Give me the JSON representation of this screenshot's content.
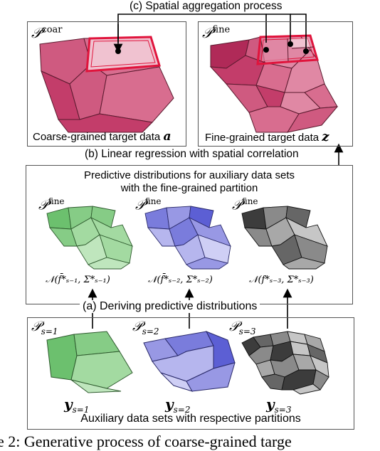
{
  "top": {
    "process_c": "(c) Spatial aggregation process",
    "coarse": {
      "symbol": "𝒫",
      "sup": "coar",
      "caption": "Coarse-grained target data",
      "var": "a"
    },
    "fine": {
      "symbol": "𝒫",
      "sup": "fine",
      "caption": "Fine-grained target data",
      "var": "z"
    }
  },
  "middle": {
    "process_b": "(b) Linear regression with spatial correlation",
    "title_line1": "Predictive distributions for auxiliary data sets",
    "title_line2": "with the fine-grained partition",
    "panels": [
      {
        "symbol": "𝒫",
        "sup": "fine",
        "formula": "𝒩(f̄*ₛ₋₁, Σ*ₛ₋₁)"
      },
      {
        "symbol": "𝒫",
        "sup": "fine",
        "formula": "𝒩(f̄*ₛ₋₂, Σ*ₛ₋₂)"
      },
      {
        "symbol": "𝒫",
        "sup": "fine",
        "formula": "𝒩(f*ₛ₋₃, Σ*ₛ₋₃)"
      }
    ]
  },
  "bottom": {
    "process_a": "(a) Deriving predictive distributions",
    "panels": [
      {
        "symbol": "𝒫",
        "sub": "s=1",
        "var": "y",
        "var_sub": "s=1"
      },
      {
        "symbol": "𝒫",
        "sub": "s=2",
        "var": "y",
        "var_sub": "s=2"
      },
      {
        "symbol": "𝒫",
        "sub": "s=3",
        "var": "y",
        "var_sub": "s=3"
      }
    ],
    "caption": "Auxiliary data sets with respective partitions"
  },
  "figure_caption": "e 2: Generative process of coarse-grained targe",
  "colors": {
    "pink": [
      "#c33d6a",
      "#cf5a80",
      "#d86d8f",
      "#e088a4",
      "#e6a0b6",
      "#f0c2d0"
    ],
    "green": [
      "#6cc06e",
      "#86cc86",
      "#a3daa1",
      "#bfe6bd"
    ],
    "blue": [
      "#5c5fd4",
      "#7a7cdc",
      "#9898e4",
      "#b6b6ee",
      "#cfcff5"
    ],
    "gray": [
      "#3c3c3c",
      "#666666",
      "#8a8a8a",
      "#a8a8a8",
      "#c6c6c6"
    ],
    "highlight": "#e0143c"
  }
}
